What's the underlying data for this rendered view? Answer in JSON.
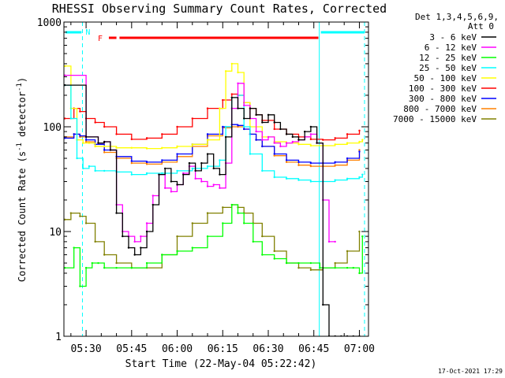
{
  "title": "RHESSI Observing Summary Count Rates, Corrected",
  "legend_header": [
    "Det 1,3,4,5,6,9,",
    "Att 0"
  ],
  "footer_date": "17-Oct-2021 17:29",
  "flag_labels": {
    "n": "N",
    "f": "F"
  },
  "chart_data": {
    "type": "line",
    "title": "RHESSI Observing Summary Count Rates, Corrected",
    "xlabel": "Start Time (22-May-04 05:22:42)",
    "ylabel": "Corrected Count Rate (s⁻¹ detector⁻¹)",
    "ylabel_main": "Corrected Count Rate (s",
    "ylabel_exp1": "-1",
    "ylabel_mid": " detector",
    "ylabel_exp2": "-1",
    "ylabel_end": ")",
    "yscale": "log",
    "ylim": [
      1,
      1000
    ],
    "xlim_minutes": [
      322.7,
      423.0
    ],
    "y_ticks": [
      {
        "label": "1",
        "value": 1
      },
      {
        "label": "10",
        "value": 10
      },
      {
        "label": "100",
        "value": 100
      },
      {
        "label": "1000",
        "value": 1000
      }
    ],
    "x_ticks": [
      {
        "label": "05:30",
        "minutes": 330
      },
      {
        "label": "05:45",
        "minutes": 345
      },
      {
        "label": "06:00",
        "minutes": 360
      },
      {
        "label": "06:15",
        "minutes": 375
      },
      {
        "label": "06:30",
        "minutes": 390
      },
      {
        "label": "06:45",
        "minutes": 405
      },
      {
        "label": "07:00",
        "minutes": 420
      }
    ],
    "night_boundaries_minutes": [
      322.7,
      328.8,
      406.8,
      421.7
    ],
    "saa_intervals_minutes": [
      [
        322.7,
        328.5
      ],
      [
        406.8,
        421.7
      ]
    ],
    "flare_intervals_minutes": [
      [
        337.5,
        340.0
      ],
      [
        341.0,
        406.5
      ]
    ],
    "series": [
      {
        "name": "3 - 6 keV",
        "color": "#000000",
        "x": [
          323,
          330,
          334,
          336,
          338,
          340,
          342,
          344,
          346,
          348,
          350,
          352,
          354,
          356,
          358,
          360,
          362,
          364,
          366,
          368,
          370,
          372,
          374,
          376,
          378,
          380,
          382,
          384,
          386,
          388,
          390,
          392,
          394,
          396,
          398,
          400,
          402,
          404,
          406,
          408,
          410,
          412,
          414,
          416,
          418,
          420
        ],
        "y": [
          250,
          80,
          70,
          72,
          60,
          15,
          9,
          7,
          6,
          7,
          10,
          18,
          35,
          40,
          30,
          28,
          35,
          45,
          38,
          45,
          55,
          40,
          35,
          80,
          190,
          150,
          120,
          150,
          130,
          110,
          130,
          110,
          95,
          85,
          80,
          75,
          90,
          100,
          70,
          2,
          1,
          1,
          1,
          1,
          1,
          1
        ]
      },
      {
        "name": "6 - 12 keV",
        "color": "#ff00ff",
        "x": [
          323,
          330,
          334,
          336,
          338,
          340,
          342,
          344,
          346,
          348,
          350,
          352,
          354,
          356,
          358,
          360,
          362,
          364,
          366,
          368,
          370,
          372,
          374,
          376,
          378,
          380,
          382,
          384,
          386,
          388,
          390,
          392,
          394,
          396,
          398,
          400,
          402,
          404,
          406,
          408,
          410,
          412
        ],
        "y": [
          310,
          80,
          70,
          72,
          60,
          18,
          10,
          9,
          8,
          9,
          12,
          22,
          35,
          26,
          24,
          28,
          36,
          42,
          32,
          30,
          27,
          28,
          26,
          45,
          150,
          260,
          160,
          120,
          90,
          75,
          80,
          70,
          65,
          70,
          72,
          75,
          80,
          85,
          70,
          20,
          8,
          8
        ]
      },
      {
        "name": "12 - 25 keV",
        "color": "#00ff00",
        "x": [
          323,
          326,
          328,
          330,
          332,
          334,
          336,
          340,
          345,
          350,
          355,
          360,
          365,
          370,
          375,
          378,
          380,
          382,
          385,
          388,
          392,
          396,
          400,
          404,
          407,
          412,
          416,
          418,
          420,
          421
        ],
        "y": [
          4.5,
          7,
          3,
          4.5,
          5,
          5,
          4.5,
          4.5,
          4.5,
          5,
          6,
          6.5,
          7,
          9,
          12,
          18,
          15,
          12,
          8,
          6,
          5.5,
          5,
          5,
          5,
          4.5,
          4.5,
          4.5,
          4.5,
          4,
          9
        ]
      },
      {
        "name": "25 - 50 keV",
        "color": "#00ffff",
        "x": [
          323,
          325,
          327,
          329,
          331,
          333,
          336,
          340,
          345,
          350,
          355,
          360,
          365,
          370,
          374,
          376,
          378,
          380,
          382,
          384,
          388,
          392,
          396,
          400,
          404,
          408,
          412,
          416,
          420,
          421
        ],
        "y": [
          250,
          120,
          50,
          40,
          42,
          38,
          38,
          37,
          35,
          36,
          36,
          38,
          40,
          42,
          48,
          100,
          190,
          200,
          100,
          55,
          38,
          33,
          32,
          31,
          30,
          30,
          31,
          32,
          33,
          35
        ]
      },
      {
        "name": "50 - 100 keV",
        "color": "#ffff00",
        "x": [
          323,
          325,
          327,
          329,
          331,
          333,
          336,
          340,
          345,
          350,
          355,
          360,
          365,
          370,
          374,
          376,
          378,
          380,
          382,
          384,
          388,
          392,
          396,
          400,
          404,
          408,
          412,
          416,
          420,
          421
        ],
        "y": [
          380,
          150,
          75,
          70,
          70,
          65,
          65,
          63,
          63,
          62,
          63,
          65,
          68,
          75,
          150,
          340,
          400,
          330,
          170,
          100,
          80,
          72,
          70,
          68,
          66,
          66,
          68,
          70,
          72,
          75
        ]
      },
      {
        "name": "100 - 300 keV",
        "color": "#ff0000",
        "x": [
          323,
          326,
          328,
          330,
          333,
          336,
          340,
          345,
          350,
          355,
          360,
          365,
          370,
          375,
          378,
          380,
          382,
          384,
          386,
          388,
          392,
          396,
          400,
          404,
          408,
          412,
          416,
          420
        ],
        "y": [
          120,
          150,
          140,
          120,
          110,
          100,
          85,
          76,
          78,
          85,
          100,
          120,
          150,
          180,
          205,
          200,
          170,
          150,
          130,
          115,
          95,
          85,
          80,
          76,
          75,
          78,
          85,
          92
        ]
      },
      {
        "name": "300 - 800 keV",
        "color": "#0000ff",
        "x": [
          323,
          326,
          328,
          330,
          333,
          336,
          340,
          345,
          350,
          355,
          360,
          365,
          370,
          375,
          378,
          380,
          382,
          384,
          386,
          388,
          392,
          396,
          400,
          404,
          408,
          412,
          416,
          420
        ],
        "y": [
          78,
          85,
          82,
          75,
          68,
          60,
          52,
          47,
          46,
          48,
          55,
          68,
          85,
          100,
          105,
          103,
          95,
          85,
          75,
          65,
          55,
          48,
          46,
          45,
          45,
          46,
          50,
          58
        ]
      },
      {
        "name": "800 - 7000 keV",
        "color": "#ff8000",
        "x": [
          323,
          326,
          328,
          330,
          333,
          336,
          340,
          345,
          350,
          355,
          360,
          365,
          370,
          375,
          378,
          380,
          382,
          384,
          386,
          388,
          392,
          396,
          400,
          404,
          408,
          412,
          416,
          420
        ],
        "y": [
          80,
          85,
          80,
          72,
          65,
          57,
          50,
          45,
          44,
          46,
          52,
          65,
          82,
          98,
          100,
          100,
          95,
          85,
          75,
          65,
          53,
          46,
          43,
          42,
          42,
          43,
          48,
          60
        ]
      },
      {
        "name": "7000 - 15000 keV",
        "color": "#808000",
        "x": [
          323,
          325,
          328,
          330,
          333,
          336,
          340,
          345,
          350,
          355,
          360,
          365,
          370,
          375,
          378,
          380,
          382,
          385,
          388,
          392,
          396,
          400,
          404,
          408,
          412,
          416,
          420
        ],
        "y": [
          13,
          15,
          14,
          12,
          8,
          6,
          5,
          4.5,
          4.5,
          6,
          9,
          12,
          15,
          17,
          18,
          17,
          15,
          12,
          9,
          6.5,
          5,
          4.5,
          4.3,
          4.5,
          5,
          6.5,
          10
        ]
      }
    ]
  }
}
